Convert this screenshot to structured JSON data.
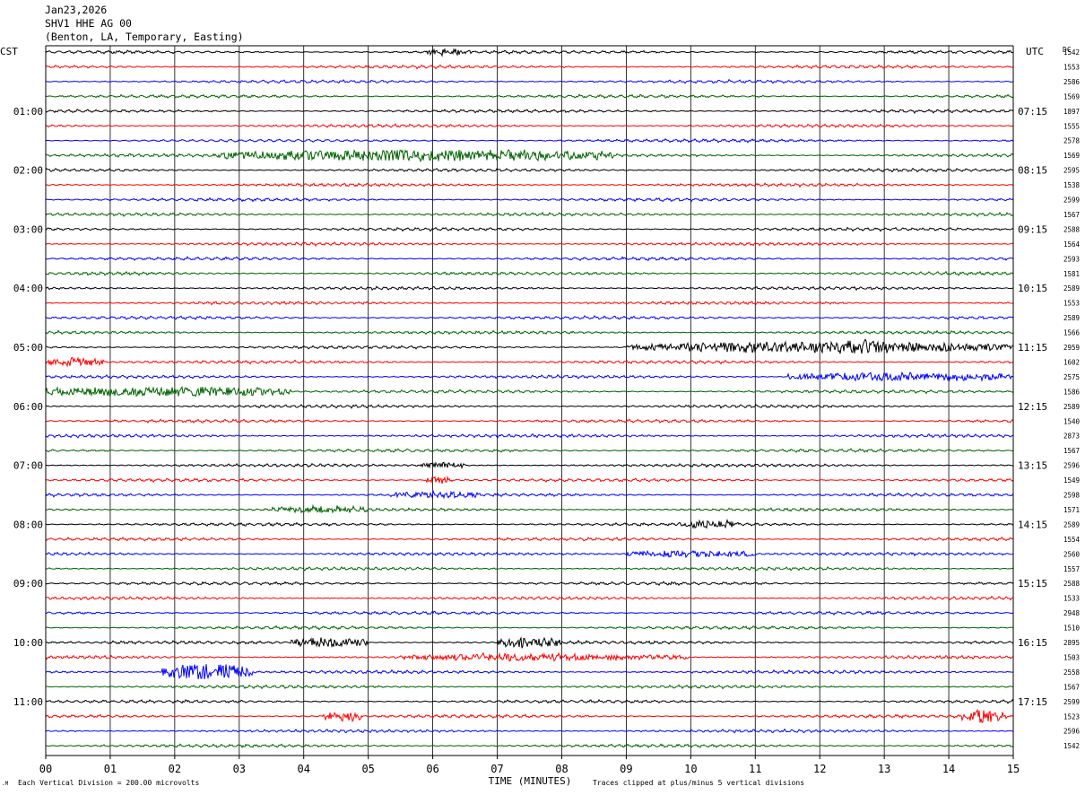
{
  "header": {
    "date": "Jan23,2026",
    "station": "SHV1 HHE AG 00",
    "location": "(Benton, LA, Temporary, Easting)"
  },
  "footer": {
    "division_note": "Each Vertical Division =  200.00 microvolts",
    "clip_note": "Traces clipped at plus/minus 5 vertical divisions"
  },
  "colors": {
    "trace_cycle": [
      "#000000",
      "#ff0000",
      "#0000ff",
      "#006400"
    ],
    "grid": "#000000",
    "background": "#ffffff"
  },
  "chart_data": {
    "type": "line",
    "subtype": "helicorder",
    "title": "",
    "xlabel": "TIME (MINUTES)",
    "xlim": [
      0,
      15
    ],
    "x_ticks": [
      "00",
      "01",
      "02",
      "03",
      "04",
      "05",
      "06",
      "07",
      "08",
      "09",
      "10",
      "11",
      "12",
      "13",
      "14",
      "15"
    ],
    "left_axis_label": "CST",
    "right_axis_label": "UTC",
    "dc_label": "DC",
    "minutes_per_line": 15,
    "line_count": 48,
    "left_hour_labels": [
      "01:00",
      "02:00",
      "03:00",
      "04:00",
      "05:00",
      "06:00",
      "07:00",
      "08:00",
      "09:00",
      "10:00",
      "11:00"
    ],
    "right_hour_labels": [
      "07:15",
      "08:15",
      "09:15",
      "10:15",
      "11:15",
      "12:15",
      "13:15",
      "14:15",
      "15:15",
      "16:15",
      "17:15"
    ],
    "hour_label_lines": [
      4,
      8,
      12,
      16,
      20,
      24,
      28,
      32,
      36,
      40,
      44
    ],
    "dc_offsets": [
      1542,
      1553,
      2586,
      1569,
      1897,
      1555,
      2578,
      1569,
      2595,
      1538,
      2599,
      1567,
      2588,
      1564,
      2593,
      1581,
      2589,
      1553,
      2589,
      1566,
      2959,
      1602,
      2575,
      1586,
      2589,
      1540,
      2873,
      1567,
      2596,
      1549,
      2598,
      1571,
      2589,
      1554,
      2560,
      1557,
      2588,
      1533,
      2948,
      1510,
      2895,
      1503,
      2558,
      1567,
      2599,
      1523,
      2596,
      1542
    ],
    "noise_amplitude_divisions": 0.55,
    "clip_divisions": 5,
    "events": [
      {
        "line": 0,
        "start_min": 5.9,
        "end_min": 6.6,
        "amplitude": 1.6
      },
      {
        "line": 7,
        "start_min": 2.6,
        "end_min": 8.8,
        "amplitude": 2.6
      },
      {
        "line": 20,
        "start_min": 9.0,
        "end_min": 15.0,
        "amplitude": 2.4
      },
      {
        "line": 20,
        "start_min": 12.0,
        "end_min": 13.2,
        "amplitude": 3.5
      },
      {
        "line": 21,
        "start_min": 0.0,
        "end_min": 0.9,
        "amplitude": 2.0
      },
      {
        "line": 22,
        "start_min": 11.5,
        "end_min": 15.0,
        "amplitude": 1.9
      },
      {
        "line": 23,
        "start_min": 0.0,
        "end_min": 3.8,
        "amplitude": 2.3
      },
      {
        "line": 28,
        "start_min": 5.8,
        "end_min": 6.5,
        "amplitude": 1.5
      },
      {
        "line": 29,
        "start_min": 5.9,
        "end_min": 6.3,
        "amplitude": 1.8
      },
      {
        "line": 30,
        "start_min": 5.3,
        "end_min": 6.7,
        "amplitude": 1.5
      },
      {
        "line": 31,
        "start_min": 3.5,
        "end_min": 5.0,
        "amplitude": 1.5
      },
      {
        "line": 32,
        "start_min": 9.8,
        "end_min": 10.8,
        "amplitude": 1.6
      },
      {
        "line": 34,
        "start_min": 9.0,
        "end_min": 11.0,
        "amplitude": 1.6
      },
      {
        "line": 40,
        "start_min": 3.8,
        "end_min": 5.0,
        "amplitude": 2.2
      },
      {
        "line": 40,
        "start_min": 7.0,
        "end_min": 8.0,
        "amplitude": 2.4
      },
      {
        "line": 41,
        "start_min": 5.5,
        "end_min": 10.0,
        "amplitude": 1.4
      },
      {
        "line": 42,
        "start_min": 1.8,
        "end_min": 3.2,
        "amplitude": 3.8
      },
      {
        "line": 45,
        "start_min": 4.3,
        "end_min": 4.9,
        "amplitude": 2.3
      },
      {
        "line": 45,
        "start_min": 14.2,
        "end_min": 14.9,
        "amplitude": 3.0
      }
    ]
  }
}
